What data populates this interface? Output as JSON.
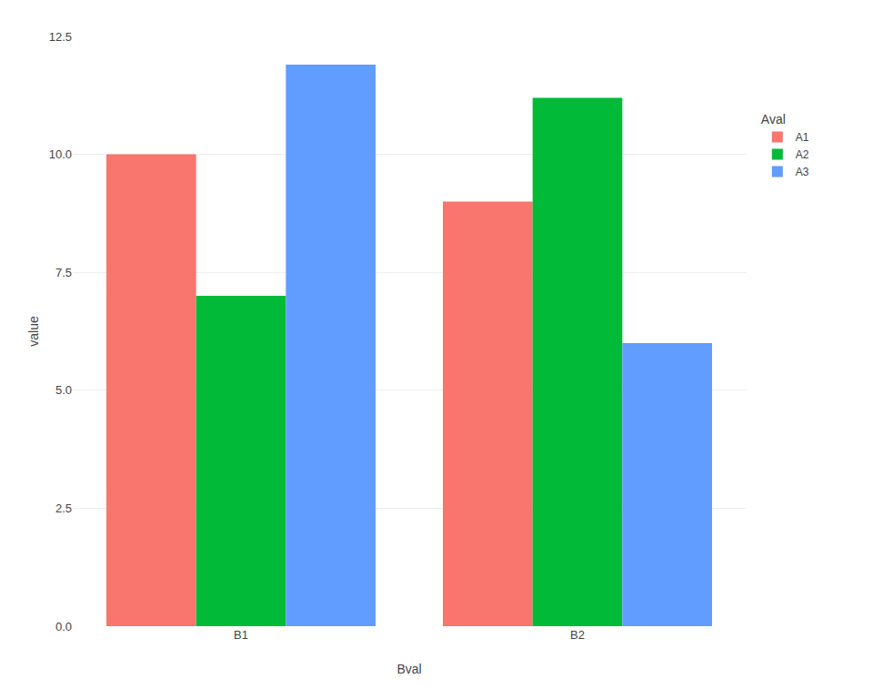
{
  "chart_data": {
    "type": "bar",
    "xlabel": "Bval",
    "ylabel": "value",
    "legend_title": "Aval",
    "categories": [
      "B1",
      "B2"
    ],
    "series": [
      {
        "name": "A1",
        "color": "#F8766D",
        "values": [
          10.0,
          9.0
        ]
      },
      {
        "name": "A2",
        "color": "#00BA38",
        "values": [
          7.0,
          11.2
        ]
      },
      {
        "name": "A3",
        "color": "#619CFF",
        "values": [
          11.9,
          6.0
        ]
      }
    ],
    "ylim": [
      0,
      12.5
    ],
    "yticks": [
      {
        "value": 0,
        "label": "0.0"
      },
      2.5,
      {
        "value": 5,
        "label": "5.0"
      },
      7.5,
      {
        "value": 10,
        "label": "10.0"
      },
      12.5
    ],
    "grid": true,
    "legend": "right"
  }
}
